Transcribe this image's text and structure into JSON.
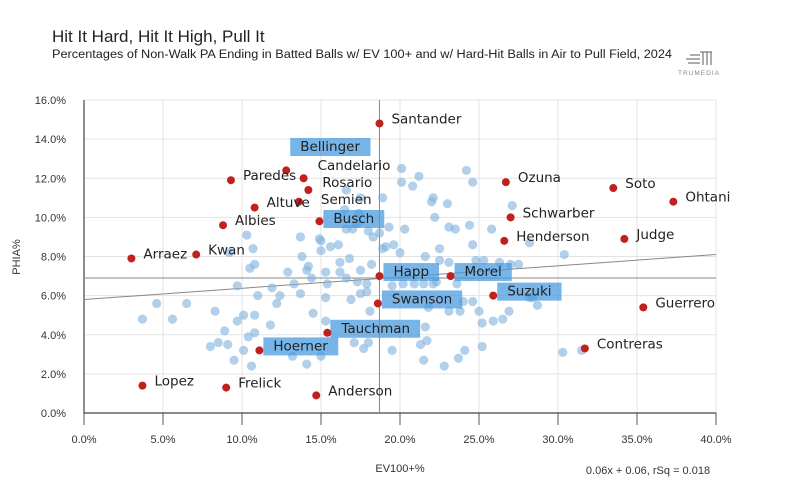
{
  "chart_data": {
    "type": "scatter",
    "title": "Hit It Hard, Hit It High, Pull It",
    "subtitle": "Percentages of Non-Walk PA Ending in Batted Balls w/ EV 100+ and w/ Hard-Hit Balls in Air to Pull Field, 2024",
    "logo_text": "TRUMEDIA",
    "xlabel": "EV100+%",
    "ylabel": "PHIA%",
    "xlim": [
      0,
      40
    ],
    "ylim": [
      0,
      16
    ],
    "x_ticks": [
      "0.0%",
      "5.0%",
      "10.0%",
      "15.0%",
      "20.0%",
      "25.0%",
      "30.0%",
      "35.0%",
      "40.0%"
    ],
    "y_ticks": [
      "0.0%",
      "2.0%",
      "4.0%",
      "6.0%",
      "8.0%",
      "10.0%",
      "12.0%",
      "14.0%",
      "16.0%"
    ],
    "grid": true,
    "mean_lines": {
      "x": 18.7,
      "y": 6.9
    },
    "trendline": {
      "equation": "0.06x + 0.06, rSq = 0.018",
      "y_at_x0": 5.8,
      "y_at_x40": 8.1
    },
    "colors": {
      "background_points": "#7fb1dc",
      "labeled_points": "#c0201e",
      "highlight_box": "#4a9be0",
      "reference_lines": "#888888"
    },
    "labeled_points": [
      {
        "name": "Santander",
        "x": 18.7,
        "y": 14.8,
        "highlight": false
      },
      {
        "name": "Bellinger",
        "x": 12.8,
        "y": 12.4,
        "highlight": true
      },
      {
        "name": "Paredes",
        "x": 9.3,
        "y": 11.9,
        "highlight": false
      },
      {
        "name": "Candelario",
        "x": 13.9,
        "y": 12.0,
        "highlight": false
      },
      {
        "name": "Rosario",
        "x": 14.2,
        "y": 11.4,
        "highlight": false
      },
      {
        "name": "Semien",
        "x": 13.6,
        "y": 10.8,
        "highlight": false
      },
      {
        "name": "Altuve",
        "x": 10.8,
        "y": 10.5,
        "highlight": false
      },
      {
        "name": "Busch",
        "x": 14.9,
        "y": 9.8,
        "highlight": true
      },
      {
        "name": "Albies",
        "x": 8.8,
        "y": 9.6,
        "highlight": false
      },
      {
        "name": "Kwan",
        "x": 7.1,
        "y": 8.1,
        "highlight": false
      },
      {
        "name": "Arraez",
        "x": 3.0,
        "y": 7.9,
        "highlight": false
      },
      {
        "name": "Lopez",
        "x": 3.7,
        "y": 1.4,
        "highlight": false
      },
      {
        "name": "Frelick",
        "x": 9.0,
        "y": 1.3,
        "highlight": false
      },
      {
        "name": "Anderson",
        "x": 14.7,
        "y": 0.9,
        "highlight": false
      },
      {
        "name": "Hoerner",
        "x": 11.1,
        "y": 3.2,
        "highlight": true
      },
      {
        "name": "Tauchman",
        "x": 15.4,
        "y": 4.1,
        "highlight": true
      },
      {
        "name": "Swanson",
        "x": 18.6,
        "y": 5.6,
        "highlight": true
      },
      {
        "name": "Happ",
        "x": 18.7,
        "y": 7.0,
        "highlight": true
      },
      {
        "name": "Morel",
        "x": 23.2,
        "y": 7.0,
        "highlight": true
      },
      {
        "name": "Suzuki",
        "x": 25.9,
        "y": 6.0,
        "highlight": true
      },
      {
        "name": "Ozuna",
        "x": 26.7,
        "y": 11.8,
        "highlight": false
      },
      {
        "name": "Schwarber",
        "x": 27.0,
        "y": 10.0,
        "highlight": false
      },
      {
        "name": "Henderson",
        "x": 26.6,
        "y": 8.8,
        "highlight": false
      },
      {
        "name": "Soto",
        "x": 33.5,
        "y": 11.5,
        "highlight": false
      },
      {
        "name": "Judge",
        "x": 34.2,
        "y": 8.9,
        "highlight": false
      },
      {
        "name": "Ohtani",
        "x": 37.3,
        "y": 10.8,
        "highlight": false
      },
      {
        "name": "Guerrero",
        "x": 35.4,
        "y": 5.4,
        "highlight": false
      },
      {
        "name": "Contreras",
        "x": 31.7,
        "y": 3.3,
        "highlight": false
      }
    ],
    "background_points": [
      [
        10.3,
        9.1
      ],
      [
        13.7,
        9.0
      ],
      [
        10.7,
        8.4
      ],
      [
        9.2,
        8.2
      ],
      [
        13.8,
        8.0
      ],
      [
        10.8,
        7.6
      ],
      [
        10.5,
        7.4
      ],
      [
        14.2,
        7.5
      ],
      [
        12.9,
        7.2
      ],
      [
        14.1,
        7.3
      ],
      [
        14.4,
        6.9
      ],
      [
        9.7,
        6.5
      ],
      [
        11.9,
        6.4
      ],
      [
        11.0,
        6.0
      ],
      [
        12.4,
        6.0
      ],
      [
        13.7,
        6.1
      ],
      [
        6.5,
        5.6
      ],
      [
        12.2,
        5.6
      ],
      [
        5.6,
        4.8
      ],
      [
        8.3,
        5.2
      ],
      [
        10.1,
        5.0
      ],
      [
        10.8,
        5.0
      ],
      [
        9.7,
        4.7
      ],
      [
        11.8,
        4.5
      ],
      [
        14.5,
        5.1
      ],
      [
        8.9,
        4.2
      ],
      [
        10.8,
        4.1
      ],
      [
        10.4,
        3.9
      ],
      [
        8.0,
        3.4
      ],
      [
        8.5,
        3.6
      ],
      [
        9.1,
        3.5
      ],
      [
        10.1,
        3.2
      ],
      [
        9.5,
        2.7
      ],
      [
        10.6,
        2.4
      ],
      [
        13.2,
        2.9
      ],
      [
        14.1,
        2.5
      ],
      [
        3.7,
        4.8
      ],
      [
        4.6,
        5.6
      ],
      [
        20.1,
        12.5
      ],
      [
        21.2,
        12.1
      ],
      [
        24.2,
        12.4
      ],
      [
        24.6,
        11.8
      ],
      [
        20.1,
        11.8
      ],
      [
        20.8,
        11.6
      ],
      [
        18.9,
        11.0
      ],
      [
        16.6,
        11.4
      ],
      [
        17.5,
        11.0
      ],
      [
        22.1,
        11.0
      ],
      [
        23.0,
        10.7
      ],
      [
        22.0,
        10.8
      ],
      [
        22.2,
        10.0
      ],
      [
        16.5,
        10.4
      ],
      [
        17.4,
        10.2
      ],
      [
        17.3,
        9.7
      ],
      [
        18.0,
        9.3
      ],
      [
        17.0,
        9.4
      ],
      [
        16.6,
        9.4
      ],
      [
        19.3,
        9.5
      ],
      [
        20.3,
        9.4
      ],
      [
        18.7,
        9.2
      ],
      [
        18.3,
        9.0
      ],
      [
        14.9,
        8.9
      ],
      [
        15.6,
        8.5
      ],
      [
        16.1,
        8.6
      ],
      [
        18.9,
        8.4
      ],
      [
        19.6,
        8.6
      ],
      [
        19.1,
        8.5
      ],
      [
        20.0,
        8.2
      ],
      [
        22.5,
        8.4
      ],
      [
        23.1,
        9.5
      ],
      [
        23.5,
        9.4
      ],
      [
        24.4,
        9.6
      ],
      [
        25.8,
        9.4
      ],
      [
        24.6,
        8.6
      ],
      [
        21.6,
        8.0
      ],
      [
        22.5,
        7.8
      ],
      [
        23.1,
        7.7
      ],
      [
        24.8,
        7.8
      ],
      [
        25.3,
        7.8
      ],
      [
        26.3,
        7.7
      ],
      [
        27.0,
        7.6
      ],
      [
        27.5,
        7.6
      ],
      [
        28.2,
        8.7
      ],
      [
        16.2,
        7.7
      ],
      [
        16.8,
        7.9
      ],
      [
        15.3,
        7.2
      ],
      [
        16.2,
        7.2
      ],
      [
        16.6,
        6.9
      ],
      [
        17.5,
        7.3
      ],
      [
        18.2,
        7.6
      ],
      [
        17.3,
        6.7
      ],
      [
        17.9,
        6.6
      ],
      [
        17.5,
        6.1
      ],
      [
        16.9,
        5.8
      ],
      [
        17.9,
        6.2
      ],
      [
        19.5,
        6.5
      ],
      [
        20.2,
        6.6
      ],
      [
        20.9,
        6.6
      ],
      [
        21.5,
        6.6
      ],
      [
        22.1,
        6.6
      ],
      [
        22.3,
        6.7
      ],
      [
        23.6,
        6.6
      ],
      [
        15.4,
        6.6
      ],
      [
        15.3,
        5.9
      ],
      [
        18.1,
        5.2
      ],
      [
        21.8,
        5.4
      ],
      [
        23.1,
        5.2
      ],
      [
        23.8,
        5.2
      ],
      [
        24.0,
        5.7
      ],
      [
        24.6,
        5.7
      ],
      [
        25.0,
        5.2
      ],
      [
        25.2,
        4.6
      ],
      [
        25.9,
        4.7
      ],
      [
        26.5,
        4.8
      ],
      [
        26.9,
        5.2
      ],
      [
        28.7,
        5.5
      ],
      [
        28.4,
        5.9
      ],
      [
        15.3,
        4.7
      ],
      [
        21.6,
        4.4
      ],
      [
        21.7,
        3.7
      ],
      [
        21.3,
        3.5
      ],
      [
        17.7,
        3.3
      ],
      [
        17.1,
        3.6
      ],
      [
        18.0,
        3.6
      ],
      [
        19.5,
        3.2
      ],
      [
        21.5,
        2.7
      ],
      [
        22.8,
        2.4
      ],
      [
        23.7,
        2.8
      ],
      [
        24.1,
        3.2
      ],
      [
        25.2,
        3.4
      ],
      [
        15.0,
        2.9
      ],
      [
        15.0,
        8.8
      ],
      [
        15.0,
        8.3
      ],
      [
        13.3,
        6.6
      ],
      [
        30.4,
        8.1
      ],
      [
        28.2,
        5.9
      ],
      [
        30.3,
        3.1
      ],
      [
        31.5,
        3.2
      ],
      [
        27.1,
        10.6
      ]
    ]
  }
}
